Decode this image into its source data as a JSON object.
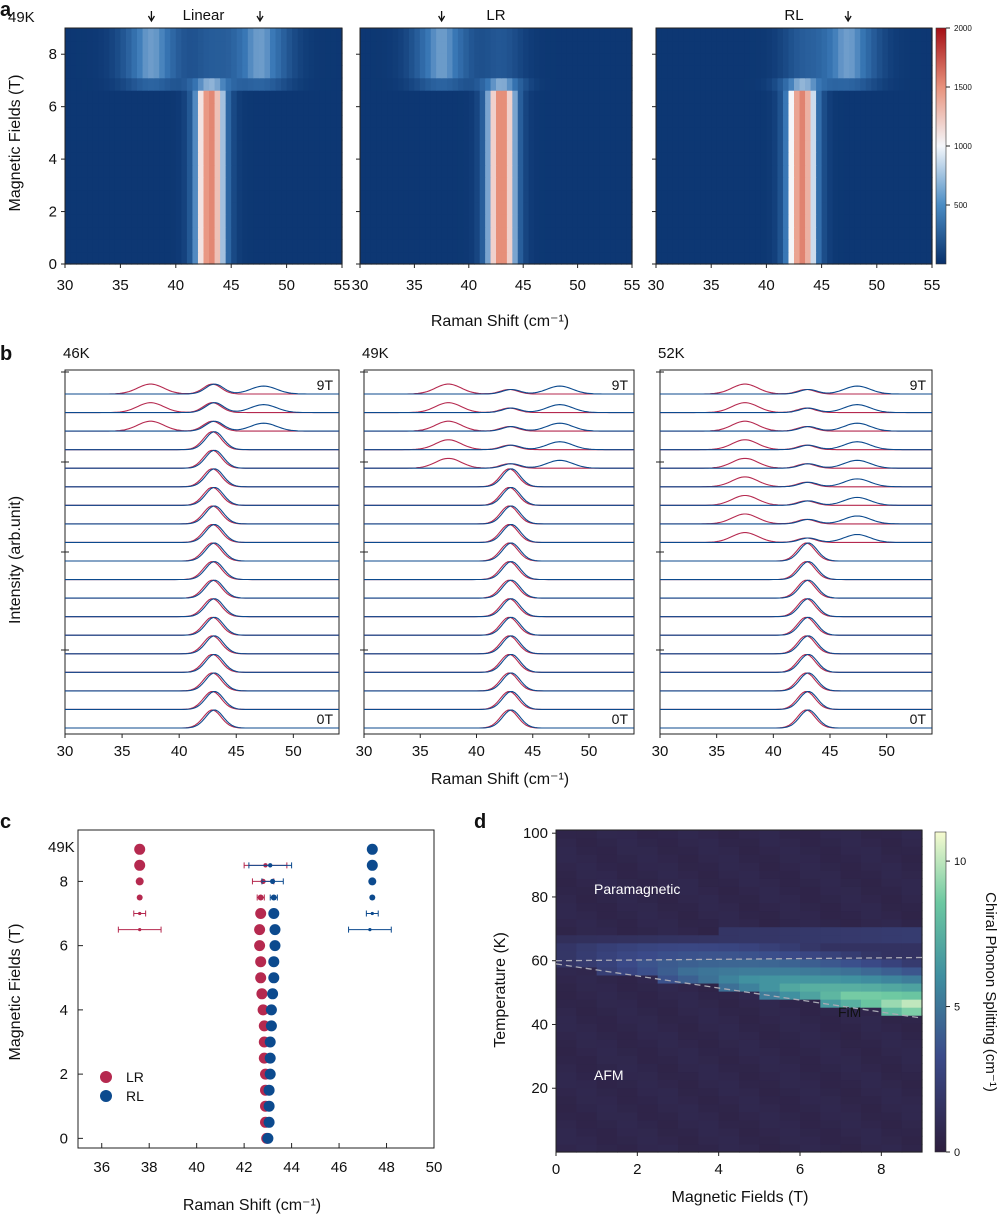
{
  "panel_labels": [
    "a",
    "b",
    "c",
    "d"
  ],
  "colors": {
    "heat_low": "#08306b",
    "heat_mid": "#f7fbff",
    "heat_high": "#b2182b",
    "lr": "#b5294f",
    "rl": "#0c4a8e",
    "d_low": "#2d1e3e",
    "d_mid": "#3f8fa0",
    "d_high": "#f7fbd0"
  },
  "chart_data": [
    {
      "id": "a",
      "type": "heatmap",
      "temperature_label": "49K",
      "panels": [
        {
          "title": "Linear",
          "peaks": [
            37.8,
            43.1,
            47.6
          ],
          "arrows": [
            37.8,
            47.6
          ]
        },
        {
          "title": "LR",
          "peaks": [
            37.5,
            43.0
          ],
          "arrows": [
            37.5
          ]
        },
        {
          "title": "RL",
          "peaks": [
            43.2,
            47.4
          ],
          "arrows": [
            47.4
          ]
        }
      ],
      "xlabel": "Raman Shift (cm⁻¹)",
      "ylabel": "Magnetic Fields (T)",
      "xlim": [
        30,
        55
      ],
      "ylim": [
        0,
        9
      ],
      "xticks": [
        "30",
        "35",
        "40",
        "45",
        "50",
        "55"
      ],
      "yticks": [
        "0",
        "2",
        "4",
        "6",
        "8"
      ],
      "colorbar": {
        "range": [
          0,
          2000
        ],
        "ticks": [
          "500",
          "1000",
          "1500",
          "2000"
        ]
      }
    },
    {
      "id": "b",
      "type": "line",
      "panels": [
        {
          "temperature": "46K",
          "top_label": "9T",
          "bottom_label": "0T"
        },
        {
          "temperature": "49K",
          "top_label": "9T",
          "bottom_label": "0T"
        },
        {
          "temperature": "52K",
          "top_label": "9T",
          "bottom_label": "0T"
        }
      ],
      "fields_T": [
        0,
        0.5,
        1,
        1.5,
        2,
        2.5,
        3,
        3.5,
        4,
        4.5,
        5,
        5.5,
        6,
        6.5,
        7,
        7.5,
        8,
        8.5,
        9
      ],
      "xlabel": "Raman Shift (cm⁻¹)",
      "ylabel": "Intensity (arb.unit)",
      "xlim": [
        30,
        54
      ],
      "xticks": [
        "30",
        "35",
        "40",
        "45",
        "50"
      ]
    },
    {
      "id": "c",
      "type": "scatter",
      "temperature_label": "49K",
      "series": [
        {
          "name": "LR",
          "points": [
            {
              "x": 42.95,
              "y": 0.0
            },
            {
              "x": 42.9,
              "y": 0.5
            },
            {
              "x": 42.9,
              "y": 1.0
            },
            {
              "x": 42.9,
              "y": 1.5
            },
            {
              "x": 42.9,
              "y": 2.0
            },
            {
              "x": 42.85,
              "y": 2.5
            },
            {
              "x": 42.85,
              "y": 3.0
            },
            {
              "x": 42.85,
              "y": 3.5
            },
            {
              "x": 42.8,
              "y": 4.0
            },
            {
              "x": 42.75,
              "y": 4.5
            },
            {
              "x": 42.7,
              "y": 5.0
            },
            {
              "x": 42.7,
              "y": 5.5
            },
            {
              "x": 42.65,
              "y": 6.0
            },
            {
              "x": 42.65,
              "y": 6.5
            },
            {
              "x": 42.7,
              "y": 7.0
            },
            {
              "x": 42.7,
              "y": 7.5
            },
            {
              "x": 42.8,
              "y": 8.0
            },
            {
              "x": 42.9,
              "y": 8.5
            },
            {
              "x": 37.6,
              "y": 6.5
            },
            {
              "x": 37.6,
              "y": 7.0
            },
            {
              "x": 37.6,
              "y": 7.5
            },
            {
              "x": 37.6,
              "y": 8.0
            },
            {
              "x": 37.6,
              "y": 8.5
            },
            {
              "x": 37.6,
              "y": 9.0
            }
          ]
        },
        {
          "name": "RL",
          "points": [
            {
              "x": 43.0,
              "y": 0.0
            },
            {
              "x": 43.05,
              "y": 0.5
            },
            {
              "x": 43.05,
              "y": 1.0
            },
            {
              "x": 43.05,
              "y": 1.5
            },
            {
              "x": 43.1,
              "y": 2.0
            },
            {
              "x": 43.1,
              "y": 2.5
            },
            {
              "x": 43.1,
              "y": 3.0
            },
            {
              "x": 43.15,
              "y": 3.5
            },
            {
              "x": 43.15,
              "y": 4.0
            },
            {
              "x": 43.2,
              "y": 4.5
            },
            {
              "x": 43.25,
              "y": 5.0
            },
            {
              "x": 43.25,
              "y": 5.5
            },
            {
              "x": 43.3,
              "y": 6.0
            },
            {
              "x": 43.3,
              "y": 6.5
            },
            {
              "x": 43.25,
              "y": 7.0
            },
            {
              "x": 43.25,
              "y": 7.5
            },
            {
              "x": 43.2,
              "y": 8.0
            },
            {
              "x": 43.1,
              "y": 8.5
            },
            {
              "x": 47.3,
              "y": 6.5
            },
            {
              "x": 47.4,
              "y": 7.0
            },
            {
              "x": 47.4,
              "y": 7.5
            },
            {
              "x": 47.4,
              "y": 8.0
            },
            {
              "x": 47.4,
              "y": 8.5
            },
            {
              "x": 47.4,
              "y": 9.0
            }
          ]
        }
      ],
      "xlabel": "Raman Shift (cm⁻¹)",
      "ylabel": "Magnetic Fields (T)",
      "xlim": [
        35,
        50
      ],
      "ylim": [
        -0.3,
        9.6
      ],
      "xticks": [
        "36",
        "38",
        "40",
        "42",
        "44",
        "46",
        "48",
        "50"
      ],
      "yticks": [
        "0",
        "2",
        "4",
        "6",
        "8"
      ]
    },
    {
      "id": "d",
      "type": "heatmap",
      "xlabel": "Magnetic Fields (T)",
      "ylabel": "Temperature (K)",
      "colorbar_label": "Chiral Phonon Splitting (cm⁻¹)",
      "xlim": [
        0,
        9
      ],
      "ylim": [
        0,
        101
      ],
      "xticks": [
        "0",
        "2",
        "4",
        "6",
        "8"
      ],
      "yticks": [
        "20",
        "40",
        "60",
        "80",
        "100"
      ],
      "colorbar": {
        "range": [
          0,
          11
        ],
        "ticks": [
          "0",
          "5",
          "10"
        ]
      },
      "regions": [
        "Paramagnetic",
        "FiM",
        "AFM"
      ],
      "phase_boundaries": [
        {
          "from": [
            0,
            60
          ],
          "to": [
            9,
            61
          ]
        },
        {
          "from": [
            0,
            59
          ],
          "to": [
            9,
            42
          ]
        }
      ]
    }
  ]
}
